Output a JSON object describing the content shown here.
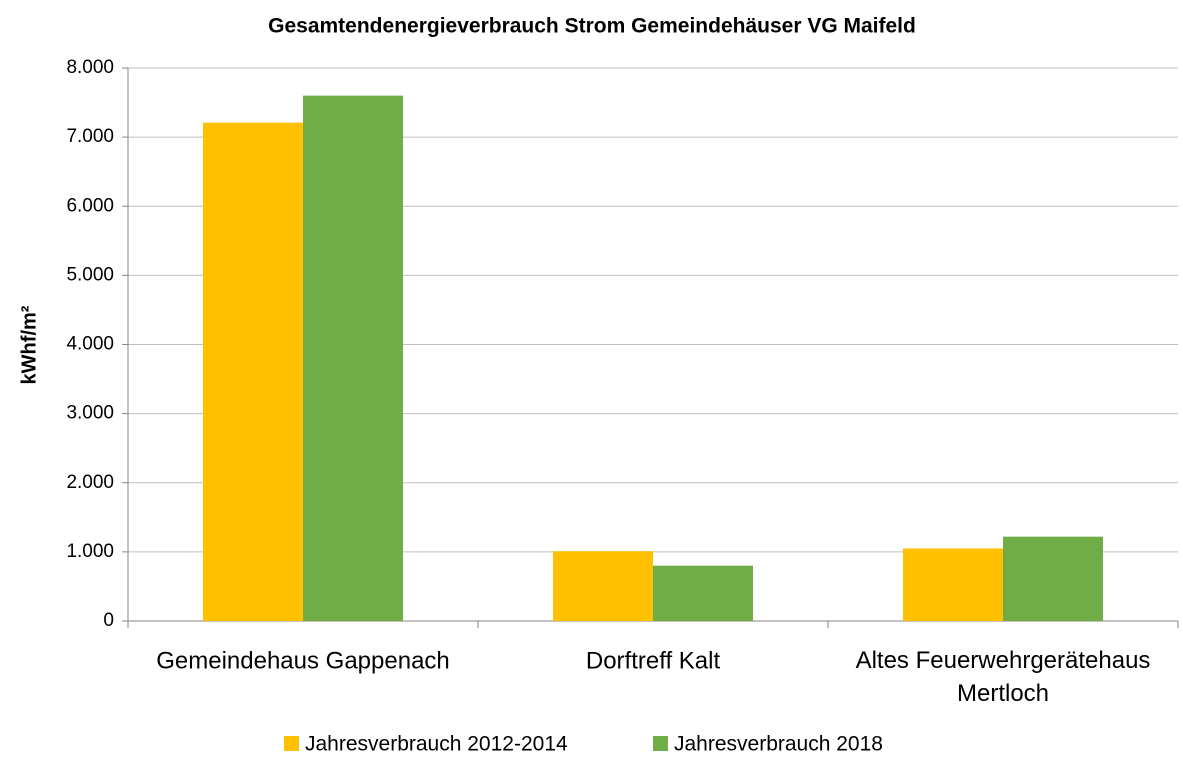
{
  "chart_data": {
    "type": "bar",
    "title": "Gesamtendenergieverbrauch Strom Gemeindehäuser VG Maifeld",
    "y_label": "kWhf/m²",
    "categories": [
      "Gemeindehaus Gappenach",
      "Dorftreff Kalt",
      "Altes Feuerwehrgerätehaus Mertloch"
    ],
    "series": [
      {
        "name": "Jahresverbrauch 2012-2014",
        "color": "#ffc000",
        "values": [
          7210,
          1010,
          1050
        ]
      },
      {
        "name": "Jahresverbrauch 2018",
        "color": "#70ad47",
        "values": [
          7600,
          800,
          1220
        ]
      }
    ],
    "ylim": [
      0,
      8000
    ],
    "yticks": [
      0,
      {
        "value": 1000,
        "label": "1.000"
      },
      {
        "value": 2000,
        "label": "2.000"
      },
      {
        "value": 3000,
        "label": "3.000"
      },
      {
        "value": 4000,
        "label": "4.000"
      },
      {
        "value": 5000,
        "label": "5.000"
      },
      {
        "value": 6000,
        "label": "6.000"
      },
      {
        "value": 7000,
        "label": "7.000"
      },
      {
        "value": 8000,
        "label": "8.000"
      }
    ],
    "grid": true,
    "legend": "bottom"
  }
}
